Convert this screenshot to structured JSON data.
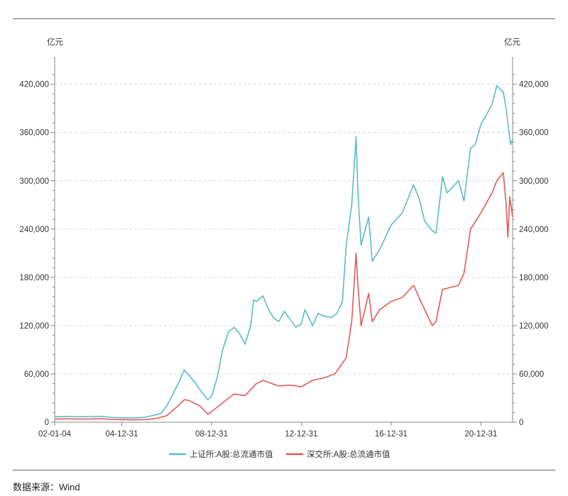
{
  "chart_data": {
    "type": "line",
    "ylabel_left": "亿元",
    "ylabel_right": "亿元",
    "ylim": [
      0,
      440000
    ],
    "yticks": [
      0,
      60000,
      120000,
      180000,
      240000,
      300000,
      360000,
      420000
    ],
    "ytick_labels": [
      "0",
      "60,000",
      "120,000",
      "180,000",
      "240,000",
      "300,000",
      "360,000",
      "420,000"
    ],
    "xlim": [
      "2002-01-04",
      "2022-05-31"
    ],
    "xticks": [
      "2002-01-04",
      "2004-12-31",
      "2008-12-31",
      "2012-12-31",
      "2016-12-31",
      "2020-12-31"
    ],
    "xtick_labels": [
      "02-01-04",
      "04-12-31",
      "08-12-31",
      "12-12-31",
      "16-12-31",
      "20-12-31"
    ],
    "grid": true,
    "legend_position": "bottom",
    "series": [
      {
        "name": "上证所:A股:总流通市值",
        "color": "#5bbcc0",
        "points": [
          [
            "2002-01-04",
            6500
          ],
          [
            "2002-06-30",
            7200
          ],
          [
            "2003-01-15",
            6800
          ],
          [
            "2003-06-30",
            7000
          ],
          [
            "2004-01-15",
            7300
          ],
          [
            "2004-06-30",
            6200
          ],
          [
            "2005-01-15",
            5500
          ],
          [
            "2005-06-30",
            5200
          ],
          [
            "2005-12-31",
            6000
          ],
          [
            "2006-06-30",
            9000
          ],
          [
            "2006-09-30",
            11000
          ],
          [
            "2006-12-31",
            20000
          ],
          [
            "2007-03-31",
            33000
          ],
          [
            "2007-06-30",
            47000
          ],
          [
            "2007-10-15",
            65000
          ],
          [
            "2007-12-31",
            58000
          ],
          [
            "2008-03-31",
            50000
          ],
          [
            "2008-06-30",
            40000
          ],
          [
            "2008-10-31",
            28000
          ],
          [
            "2008-12-31",
            32000
          ],
          [
            "2009-03-31",
            55000
          ],
          [
            "2009-06-30",
            90000
          ],
          [
            "2009-09-30",
            112000
          ],
          [
            "2009-12-31",
            118000
          ],
          [
            "2010-03-31",
            110000
          ],
          [
            "2010-06-30",
            97000
          ],
          [
            "2010-09-30",
            120000
          ],
          [
            "2010-11-15",
            152000
          ],
          [
            "2010-12-31",
            150000
          ],
          [
            "2011-04-15",
            157000
          ],
          [
            "2011-06-30",
            143000
          ],
          [
            "2011-09-30",
            130000
          ],
          [
            "2011-12-31",
            125000
          ],
          [
            "2012-03-31",
            138000
          ],
          [
            "2012-06-30",
            128000
          ],
          [
            "2012-09-30",
            118000
          ],
          [
            "2012-12-31",
            122000
          ],
          [
            "2013-02-28",
            140000
          ],
          [
            "2013-06-30",
            120000
          ],
          [
            "2013-09-30",
            135000
          ],
          [
            "2013-12-31",
            132000
          ],
          [
            "2014-04-30",
            130000
          ],
          [
            "2014-07-31",
            135000
          ],
          [
            "2014-10-31",
            150000
          ],
          [
            "2014-12-31",
            220000
          ],
          [
            "2015-03-31",
            270000
          ],
          [
            "2015-06-10",
            355000
          ],
          [
            "2015-07-10",
            285000
          ],
          [
            "2015-08-31",
            220000
          ],
          [
            "2015-12-31",
            255000
          ],
          [
            "2016-02-28",
            200000
          ],
          [
            "2016-06-30",
            215000
          ],
          [
            "2016-10-31",
            235000
          ],
          [
            "2016-12-31",
            245000
          ],
          [
            "2017-06-30",
            260000
          ],
          [
            "2017-12-31",
            295000
          ],
          [
            "2018-03-31",
            278000
          ],
          [
            "2018-06-30",
            250000
          ],
          [
            "2018-10-31",
            238000
          ],
          [
            "2018-12-31",
            235000
          ],
          [
            "2019-04-15",
            305000
          ],
          [
            "2019-06-30",
            285000
          ],
          [
            "2019-12-31",
            300000
          ],
          [
            "2020-03-31",
            275000
          ],
          [
            "2020-07-15",
            340000
          ],
          [
            "2020-09-30",
            345000
          ],
          [
            "2020-12-31",
            370000
          ],
          [
            "2021-03-31",
            382000
          ],
          [
            "2021-06-30",
            395000
          ],
          [
            "2021-09-15",
            418000
          ],
          [
            "2021-12-31",
            410000
          ],
          [
            "2022-02-15",
            390000
          ],
          [
            "2022-04-26",
            345000
          ],
          [
            "2022-05-31",
            352000
          ]
        ]
      },
      {
        "name": "深交所:A股:总流通市值",
        "color": "#e05a5a",
        "points": [
          [
            "2002-01-04",
            3800
          ],
          [
            "2002-06-30",
            4200
          ],
          [
            "2003-01-15",
            3900
          ],
          [
            "2003-06-30",
            4000
          ],
          [
            "2004-01-15",
            4300
          ],
          [
            "2004-06-30",
            3600
          ],
          [
            "2005-01-15",
            3200
          ],
          [
            "2005-06-30",
            2900
          ],
          [
            "2005-12-31",
            3300
          ],
          [
            "2006-06-30",
            4500
          ],
          [
            "2006-12-31",
            8000
          ],
          [
            "2007-06-30",
            20000
          ],
          [
            "2007-10-15",
            28000
          ],
          [
            "2007-12-31",
            27000
          ],
          [
            "2008-06-30",
            20000
          ],
          [
            "2008-10-31",
            10000
          ],
          [
            "2008-12-31",
            13000
          ],
          [
            "2009-06-30",
            24000
          ],
          [
            "2009-12-31",
            35000
          ],
          [
            "2010-06-30",
            33000
          ],
          [
            "2010-12-31",
            48000
          ],
          [
            "2011-04-15",
            52000
          ],
          [
            "2011-12-31",
            45000
          ],
          [
            "2012-06-30",
            46000
          ],
          [
            "2012-12-31",
            44000
          ],
          [
            "2013-06-30",
            52000
          ],
          [
            "2013-12-31",
            55000
          ],
          [
            "2014-06-30",
            60000
          ],
          [
            "2014-12-31",
            80000
          ],
          [
            "2015-03-31",
            125000
          ],
          [
            "2015-06-10",
            210000
          ],
          [
            "2015-07-10",
            170000
          ],
          [
            "2015-08-31",
            120000
          ],
          [
            "2015-12-31",
            160000
          ],
          [
            "2016-02-28",
            125000
          ],
          [
            "2016-06-30",
            140000
          ],
          [
            "2016-12-31",
            150000
          ],
          [
            "2017-06-30",
            155000
          ],
          [
            "2017-12-31",
            170000
          ],
          [
            "2018-06-30",
            140000
          ],
          [
            "2018-10-31",
            120000
          ],
          [
            "2018-12-31",
            125000
          ],
          [
            "2019-04-15",
            165000
          ],
          [
            "2019-12-31",
            170000
          ],
          [
            "2020-03-31",
            185000
          ],
          [
            "2020-07-15",
            240000
          ],
          [
            "2020-12-31",
            260000
          ],
          [
            "2021-06-30",
            285000
          ],
          [
            "2021-09-15",
            300000
          ],
          [
            "2021-12-31",
            310000
          ],
          [
            "2022-02-15",
            270000
          ],
          [
            "2022-03-15",
            230000
          ],
          [
            "2022-04-15",
            280000
          ],
          [
            "2022-05-31",
            255000
          ]
        ]
      }
    ]
  },
  "footer": {
    "source": "数据来源：Wind"
  }
}
